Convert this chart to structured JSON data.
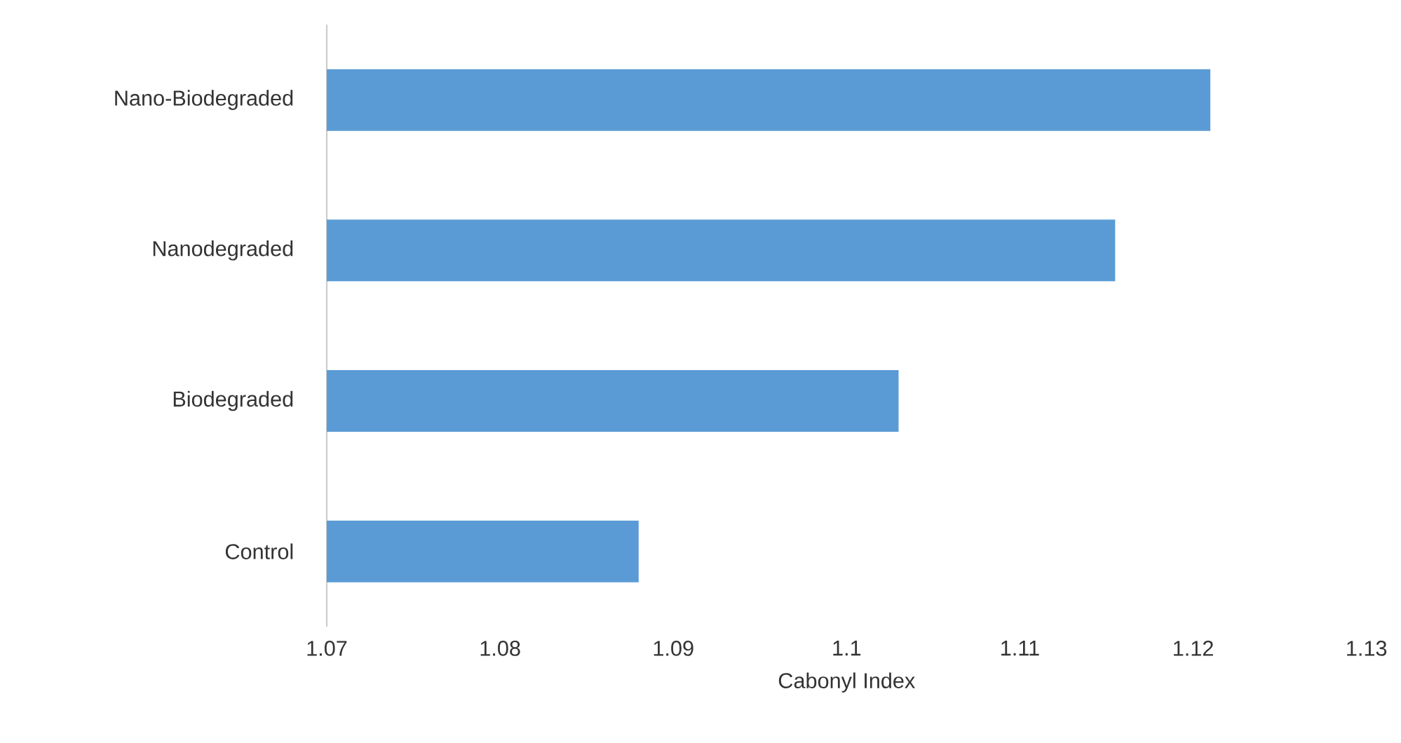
{
  "chart_data": {
    "type": "bar",
    "orientation": "horizontal",
    "xlabel": "Cabonyl Index",
    "categories": [
      "Nano-Biodegraded",
      "Nanodegraded",
      "Biodegraded",
      "Control"
    ],
    "values": [
      1.121,
      1.1155,
      1.103,
      1.088
    ],
    "color": "#5b9bd5",
    "xlim": [
      1.07,
      1.13
    ],
    "xticks": [
      1.07,
      1.08,
      1.09,
      1.1,
      1.11,
      1.12,
      1.13
    ]
  }
}
